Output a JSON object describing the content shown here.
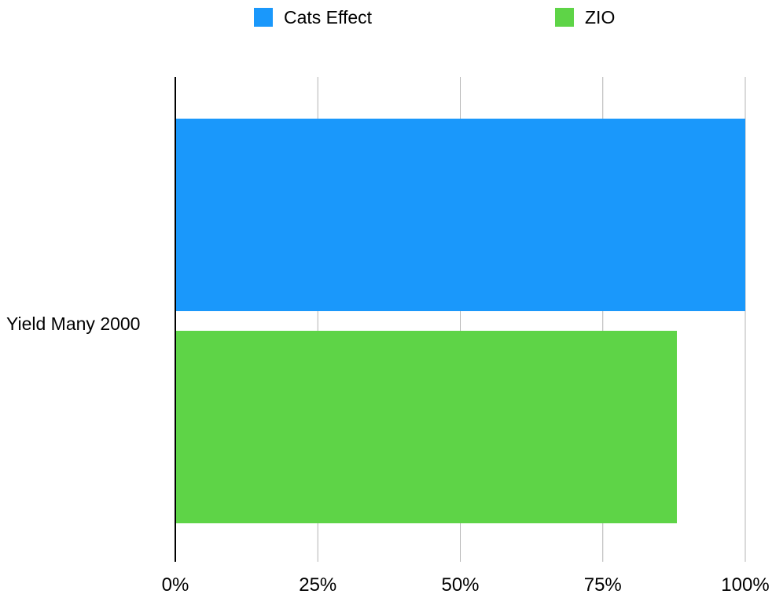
{
  "chart_data": {
    "type": "bar",
    "orientation": "horizontal",
    "categories": [
      "Yield Many 2000"
    ],
    "series": [
      {
        "name": "Cats Effect",
        "color": "#1a98fb",
        "values": [
          100
        ]
      },
      {
        "name": "ZIO",
        "color": "#5ed447",
        "values": [
          88
        ]
      }
    ],
    "xlim": [
      0,
      100
    ],
    "xticks": [
      "0%",
      "25%",
      "50%",
      "75%",
      "100%"
    ],
    "xtick_values": [
      0,
      25,
      50,
      75,
      100
    ],
    "grid": "vertical",
    "legend_position": "top"
  }
}
